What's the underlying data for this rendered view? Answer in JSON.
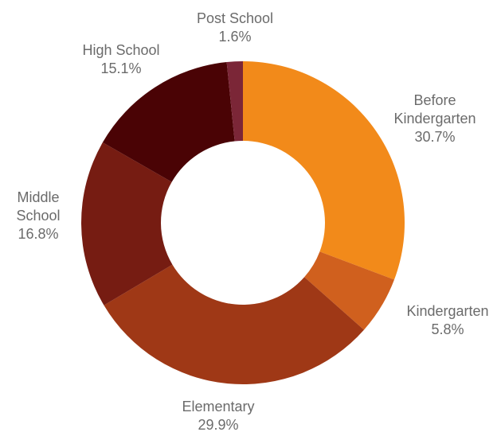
{
  "chart_data": {
    "type": "pie",
    "variant": "donut",
    "title": "",
    "legend": "none",
    "start_angle_deg": 0,
    "direction": "clockwise",
    "colors": {
      "before_kindergarten": "#f28a1a",
      "kindergarten": "#d0601e",
      "elementary": "#9f3816",
      "middle_school": "#761c12",
      "high_school": "#4a0305",
      "post_school": "#7b2637"
    },
    "slices": [
      {
        "key": "before_kindergarten",
        "label_lines": [
          "Before",
          "Kindergarten"
        ],
        "value": 30.7,
        "value_label": "30.7%"
      },
      {
        "key": "kindergarten",
        "label_lines": [
          "Kindergarten"
        ],
        "value": 5.8,
        "value_label": "5.8%"
      },
      {
        "key": "elementary",
        "label_lines": [
          "Elementary"
        ],
        "value": 29.9,
        "value_label": "29.9%"
      },
      {
        "key": "middle_school",
        "label_lines": [
          "Middle",
          "School"
        ],
        "value": 16.8,
        "value_label": "16.8%"
      },
      {
        "key": "high_school",
        "label_lines": [
          "High School"
        ],
        "value": 15.1,
        "value_label": "15.1%"
      },
      {
        "key": "post_school",
        "label_lines": [
          "Post School"
        ],
        "value": 1.6,
        "value_label": "1.6%"
      }
    ]
  }
}
